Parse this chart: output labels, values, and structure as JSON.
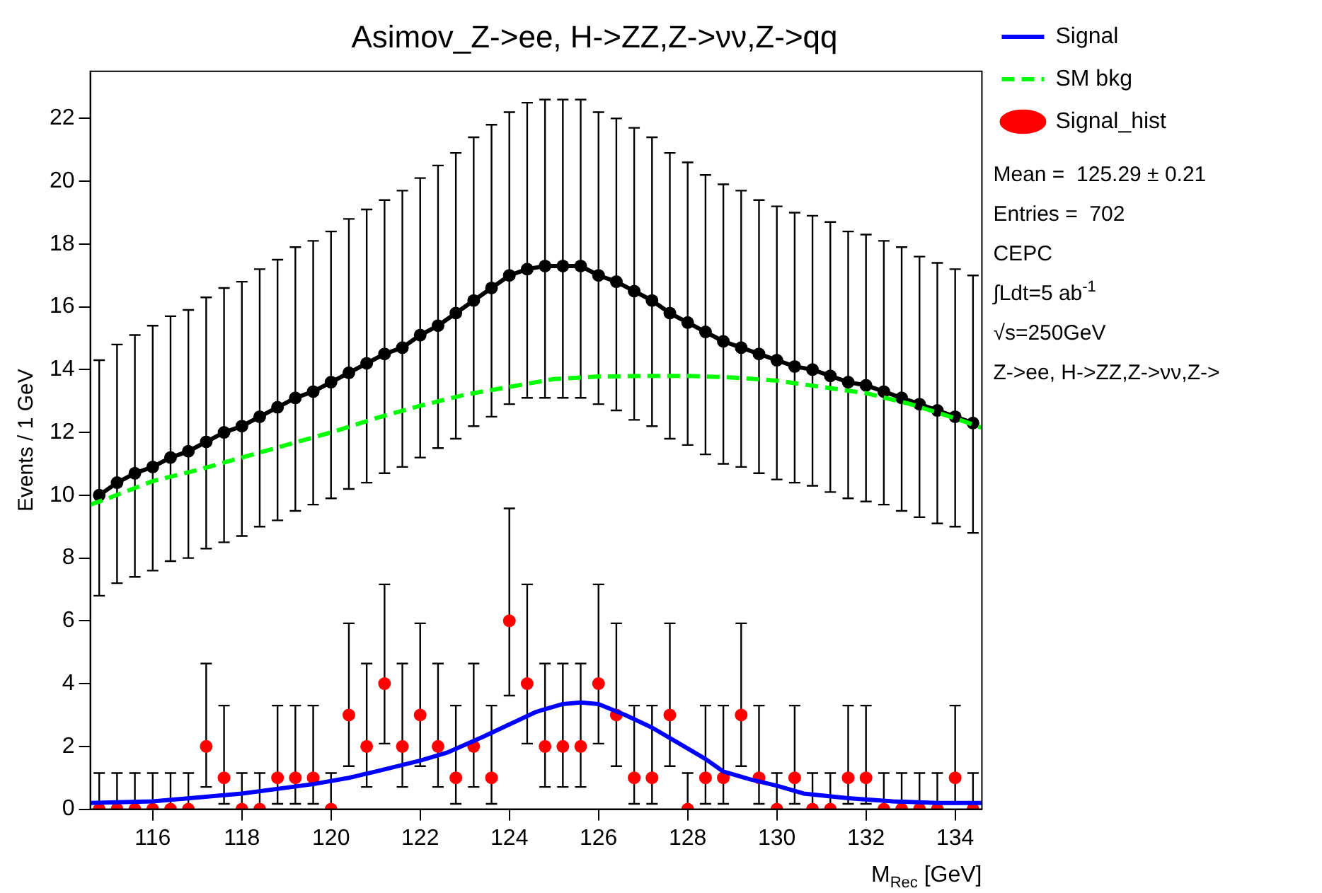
{
  "chart_data": {
    "type": "line",
    "title": "Asimov_Z->ee, H->ZZ,Z->νν,Z->qq",
    "xlabel": "M$_{Rec}$ [GeV]",
    "ylabel": "Events / 1 GeV",
    "x": [
      114.8,
      115.2,
      115.6,
      116,
      116.4,
      116.8,
      117.2,
      117.6,
      118,
      118.4,
      118.8,
      119.2,
      119.6,
      120,
      120.4,
      120.8,
      121.2,
      121.6,
      122,
      122.4,
      122.8,
      123.2,
      123.6,
      124,
      124.4,
      124.8,
      125.2,
      125.6,
      126,
      126.4,
      126.8,
      127.2,
      127.6,
      128,
      128.4,
      128.8,
      129.2,
      129.6,
      130,
      130.4,
      130.8,
      131.2,
      131.6,
      132,
      132.4,
      132.8,
      133.2,
      133.6,
      134,
      134.4
    ],
    "xlim": [
      114.6,
      134.6
    ],
    "xticks": [
      116,
      118,
      120,
      122,
      124,
      126,
      128,
      130,
      132,
      134
    ],
    "ylim": [
      0,
      23.5
    ],
    "yticks": [
      0,
      2,
      4,
      6,
      8,
      10,
      12,
      14,
      16,
      18,
      20,
      22
    ],
    "grid": false,
    "legend": "top right",
    "series": [
      {
        "name": "Signal",
        "color": "#0000ff",
        "marker": "none",
        "x": [
          114.6,
          116,
          118,
          119.6,
          120.4,
          121,
          122,
          122.6,
          123.4,
          124,
          124.6,
          125.2,
          125.6,
          126,
          126.6,
          127.2,
          127.8,
          128.4,
          128.8,
          129.4,
          130,
          130.6,
          131.6,
          132.6,
          133.6,
          134.6
        ],
        "values": [
          0.2,
          0.25,
          0.5,
          0.8,
          1.0,
          1.2,
          1.55,
          1.8,
          2.3,
          2.7,
          3.1,
          3.35,
          3.4,
          3.35,
          3.0,
          2.6,
          2.1,
          1.6,
          1.2,
          0.95,
          0.75,
          0.5,
          0.35,
          0.25,
          0.2,
          0.2
        ]
      },
      {
        "name": "SM bkg",
        "color": "#00ff00",
        "marker": "none",
        "line_style": "dashed",
        "x": [
          114.6,
          115,
          116,
          117,
          118,
          119,
          120,
          121,
          122,
          123,
          124,
          125,
          126,
          127,
          128,
          129,
          130,
          131,
          132,
          133,
          134,
          134.6
        ],
        "values": [
          9.7,
          9.9,
          10.45,
          10.8,
          11.2,
          11.6,
          12.0,
          12.45,
          12.85,
          13.2,
          13.45,
          13.7,
          13.78,
          13.8,
          13.8,
          13.75,
          13.65,
          13.45,
          13.25,
          12.9,
          12.45,
          12.15
        ]
      },
      {
        "name": "Signal_hist",
        "type": "scatter",
        "color": "#ff0000",
        "marker": "circle",
        "values": [
          0,
          0,
          0,
          0,
          0,
          0,
          2,
          1,
          0,
          0,
          1,
          1,
          1,
          0,
          3,
          2,
          4,
          2,
          3,
          2,
          1,
          2,
          1,
          6,
          4,
          2,
          2,
          2,
          4,
          3,
          1,
          1,
          3,
          0,
          1,
          1,
          3,
          1,
          0,
          1,
          0,
          0,
          1,
          1,
          0,
          0,
          0,
          0,
          1,
          0
        ],
        "errors": [
          [
            0,
            1.15
          ],
          [
            0,
            1.15
          ],
          [
            0,
            1.15
          ],
          [
            0,
            1.15
          ],
          [
            0,
            1.15
          ],
          [
            0,
            1.15
          ],
          [
            0.71,
            4.64
          ],
          [
            0.17,
            3.3
          ],
          [
            0,
            1.15
          ],
          [
            0,
            1.15
          ],
          [
            0.17,
            3.3
          ],
          [
            0.17,
            3.3
          ],
          [
            0.17,
            3.3
          ],
          [
            0,
            1.15
          ],
          [
            1.37,
            5.92
          ],
          [
            0.71,
            4.64
          ],
          [
            2.09,
            7.16
          ],
          [
            0.71,
            4.64
          ],
          [
            1.37,
            5.92
          ],
          [
            0.71,
            4.64
          ],
          [
            0.17,
            3.3
          ],
          [
            0.71,
            4.64
          ],
          [
            0.17,
            3.3
          ],
          [
            3.62,
            9.58
          ],
          [
            2.09,
            7.16
          ],
          [
            0.71,
            4.64
          ],
          [
            0.71,
            4.64
          ],
          [
            0.71,
            4.64
          ],
          [
            2.09,
            7.16
          ],
          [
            1.37,
            5.92
          ],
          [
            0.17,
            3.3
          ],
          [
            0.17,
            3.3
          ],
          [
            1.37,
            5.92
          ],
          [
            0,
            1.15
          ],
          [
            0.17,
            3.3
          ],
          [
            0.17,
            3.3
          ],
          [
            1.37,
            5.92
          ],
          [
            0.17,
            3.3
          ],
          [
            0,
            1.15
          ],
          [
            0.17,
            3.3
          ],
          [
            0,
            1.15
          ],
          [
            0,
            1.15
          ],
          [
            0.17,
            3.3
          ],
          [
            0.17,
            3.3
          ],
          [
            0,
            1.15
          ],
          [
            0,
            1.15
          ],
          [
            0,
            1.15
          ],
          [
            0,
            1.15
          ],
          [
            0.17,
            3.3
          ],
          [
            0,
            1.15
          ]
        ]
      },
      {
        "color": "#000000",
        "marker": "circle",
        "values": [
          10.0,
          10.4,
          10.7,
          10.9,
          11.2,
          11.4,
          11.7,
          12.0,
          12.2,
          12.5,
          12.8,
          13.1,
          13.3,
          13.6,
          13.9,
          14.2,
          14.5,
          14.7,
          15.1,
          15.4,
          15.8,
          16.2,
          16.6,
          17.0,
          17.2,
          17.3,
          17.3,
          17.3,
          17.0,
          16.8,
          16.5,
          16.2,
          15.8,
          15.5,
          15.2,
          14.9,
          14.7,
          14.5,
          14.3,
          14.1,
          14.0,
          13.8,
          13.6,
          13.5,
          13.3,
          13.1,
          12.9,
          12.7,
          12.5,
          12.3
        ],
        "errors": [
          [
            6.8,
            14.3
          ],
          [
            7.2,
            14.8
          ],
          [
            7.4,
            15.1
          ],
          [
            7.6,
            15.4
          ],
          [
            7.9,
            15.7
          ],
          [
            8.0,
            15.9
          ],
          [
            8.3,
            16.3
          ],
          [
            8.5,
            16.6
          ],
          [
            8.7,
            16.8
          ],
          [
            9.0,
            17.2
          ],
          [
            9.2,
            17.5
          ],
          [
            9.5,
            17.9
          ],
          [
            9.7,
            18.1
          ],
          [
            9.9,
            18.4
          ],
          [
            10.2,
            18.8
          ],
          [
            10.4,
            19.1
          ],
          [
            10.7,
            19.4
          ],
          [
            10.9,
            19.7
          ],
          [
            11.2,
            20.1
          ],
          [
            11.5,
            20.5
          ],
          [
            11.8,
            20.9
          ],
          [
            12.2,
            21.4
          ],
          [
            12.5,
            21.8
          ],
          [
            12.9,
            22.2
          ],
          [
            13.1,
            22.5
          ],
          [
            13.1,
            22.6
          ],
          [
            13.1,
            22.6
          ],
          [
            13.1,
            22.6
          ],
          [
            12.9,
            22.2
          ],
          [
            12.7,
            22.0
          ],
          [
            12.4,
            21.7
          ],
          [
            12.2,
            21.4
          ],
          [
            11.8,
            20.9
          ],
          [
            11.6,
            20.6
          ],
          [
            11.3,
            20.2
          ],
          [
            11.0,
            19.9
          ],
          [
            10.9,
            19.7
          ],
          [
            10.7,
            19.4
          ],
          [
            10.5,
            19.2
          ],
          [
            10.4,
            19.0
          ],
          [
            10.3,
            18.9
          ],
          [
            10.1,
            18.7
          ],
          [
            9.9,
            18.4
          ],
          [
            9.8,
            18.3
          ],
          [
            9.7,
            18.1
          ],
          [
            9.5,
            17.9
          ],
          [
            9.3,
            17.6
          ],
          [
            9.1,
            17.4
          ],
          [
            9.0,
            17.2
          ],
          [
            8.8,
            17.0
          ]
        ]
      }
    ],
    "annotations": [
      "Mean =  125.29 ± 0.21",
      "Entries =  702",
      "CEPC",
      "∫Ldt=5 ab$^{-1}$",
      "√s=250GeV",
      "Z->ee, H->ZZ,Z->νν,Z->"
    ]
  }
}
